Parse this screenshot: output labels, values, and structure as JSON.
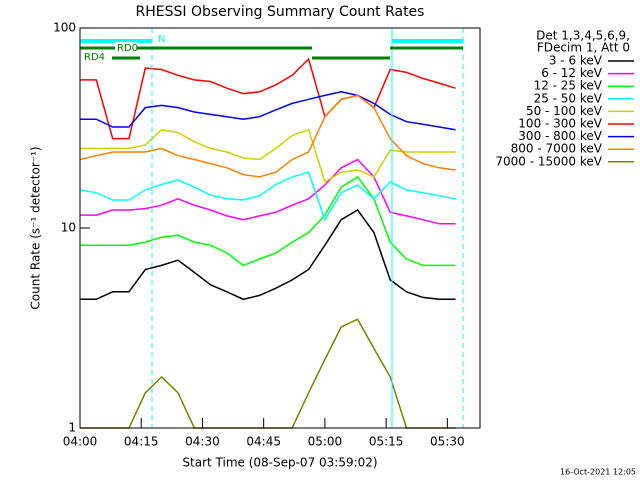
{
  "chart_data": {
    "type": "line",
    "title": "RHESSI Observing Summary Count Rates",
    "xlabel": "Start Time (08-Sep-07 03:59:02)",
    "ylabel": "Count Rate (s⁻¹ detector⁻¹)",
    "legend_header": [
      "Det 1,3,4,5,6,9,",
      "FDecim 1, Att 0"
    ],
    "annotations": [
      "N",
      "RD0",
      "RD4"
    ],
    "footer": "16-Oct-2021 12:05",
    "log_y": true,
    "legend": "right",
    "xlim": [
      "04:00",
      "05:38"
    ],
    "xticks": [
      "04:00",
      "04:15",
      "04:30",
      "04:45",
      "05:00",
      "05:15",
      "05:30"
    ],
    "ylim": [
      1,
      100
    ],
    "yticks": [
      1,
      10,
      100
    ],
    "x": [
      "04:00",
      "04:04",
      "04:08",
      "04:12",
      "04:16",
      "04:20",
      "04:24",
      "04:28",
      "04:32",
      "04:36",
      "04:40",
      "04:44",
      "04:48",
      "04:52",
      "04:56",
      "05:00",
      "05:04",
      "05:08",
      "05:12",
      "05:16",
      "05:20",
      "05:24",
      "05:28",
      "05:32"
    ],
    "series": [
      {
        "name": "3 - 6 keV",
        "color": "#000000",
        "values": [
          4.4,
          4.4,
          4.8,
          4.8,
          6.2,
          6.5,
          6.9,
          6,
          5.2,
          4.8,
          4.4,
          4.6,
          5,
          5.5,
          6.2,
          8.2,
          11,
          12.3,
          9.5,
          5.5,
          4.8,
          4.5,
          4.4,
          4.4
        ]
      },
      {
        "name": "6 - 12 keV",
        "color": "#ff00ff",
        "values": [
          11.6,
          11.6,
          12.3,
          12.3,
          12.5,
          13,
          14,
          13,
          12.3,
          11.5,
          11,
          11.5,
          12,
          13,
          14,
          16.4,
          20,
          22,
          18,
          12,
          11.5,
          11,
          10.5,
          10.5
        ]
      },
      {
        "name": "12 - 25 keV",
        "color": "#00ff00",
        "values": [
          8.2,
          8.2,
          8.2,
          8.2,
          8.5,
          9,
          9.2,
          8.5,
          8.2,
          7.5,
          6.5,
          7,
          7.5,
          8.5,
          9.5,
          11.6,
          16,
          18,
          14,
          8.5,
          7,
          6.5,
          6.5,
          6.5
        ]
      },
      {
        "name": "25 - 50 keV",
        "color": "#00ffff",
        "values": [
          15.5,
          15,
          13.8,
          13.8,
          15.5,
          16.5,
          17.4,
          16,
          14.6,
          14,
          13.8,
          14.5,
          16.5,
          18,
          19,
          11,
          15,
          16.4,
          14,
          17,
          15.5,
          15,
          14.5,
          14
        ]
      },
      {
        "name": "50 - 100 keV",
        "color": "#d0d000",
        "values": [
          25,
          25,
          25,
          25,
          26,
          31,
          30,
          27,
          25,
          24,
          22.4,
          22,
          25,
          29,
          31,
          17,
          19,
          19.5,
          18,
          24.5,
          24,
          24,
          24,
          24
        ]
      },
      {
        "name": "100 - 300 keV",
        "color": "#ff0000",
        "values": [
          55,
          55,
          28,
          28,
          63,
          62,
          58,
          55,
          54,
          50,
          47,
          48,
          52,
          58,
          70,
          36,
          44,
          46,
          40,
          62,
          60,
          56,
          53,
          50
        ]
      },
      {
        "name": "300 - 800 keV",
        "color": "#0000ff",
        "values": [
          35,
          35,
          32,
          32,
          40,
          41,
          40,
          38,
          37,
          36,
          35,
          36,
          39,
          42,
          44,
          46,
          48,
          46,
          42,
          37,
          34,
          33,
          32,
          31
        ]
      },
      {
        "name": "800 - 7000 keV",
        "color": "#ff8000",
        "values": [
          22,
          23,
          24,
          24,
          24,
          25,
          23,
          22,
          21,
          20,
          18.5,
          18,
          19,
          22,
          24,
          36,
          44,
          46,
          40,
          28,
          23,
          21,
          20,
          19.5
        ]
      },
      {
        "name": "7000 - 15000 keV",
        "color": "#808000",
        "values": [
          1,
          1,
          1,
          1,
          1.5,
          1.8,
          1.5,
          1,
          1,
          1,
          1,
          1,
          1,
          1,
          1.5,
          2.2,
          3.2,
          3.5,
          2.5,
          1.8,
          1,
          1,
          1,
          1
        ]
      }
    ]
  }
}
